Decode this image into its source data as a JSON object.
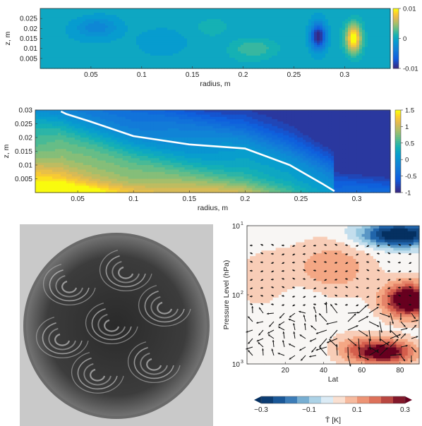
{
  "chart_data": [
    {
      "type": "heatmap",
      "xlabel": "radius, m",
      "ylabel": "z, m",
      "xlim": [
        0,
        0.345
      ],
      "ylim": [
        0,
        0.03
      ],
      "xticks": [
        0.05,
        0.1,
        0.15,
        0.2,
        0.25,
        0.3
      ],
      "xtick_labels": [
        "0.05",
        "0.1",
        "0.15",
        "0.2",
        "0.25",
        "0.3"
      ],
      "yticks": [
        0.005,
        0.01,
        0.015,
        0.02,
        0.025
      ],
      "ytick_labels": [
        "0.005",
        "0.01",
        "0.015",
        "0.02",
        "0.025"
      ],
      "colorbar": {
        "min": -0.01,
        "max": 0.01,
        "ticks": [
          0.01,
          0,
          -0.01
        ],
        "tick_labels": [
          "0.01",
          "0",
          "-0.01"
        ]
      },
      "features": [
        {
          "r": 0.055,
          "z": 0.021,
          "value": -0.003,
          "sr": 0.03,
          "sz": 0.008
        },
        {
          "r": 0.12,
          "z": 0.014,
          "value": -0.0015,
          "sr": 0.04,
          "sz": 0.01
        },
        {
          "r": 0.21,
          "z": 0.01,
          "value": 0.0025,
          "sr": 0.03,
          "sz": 0.007
        },
        {
          "r": 0.17,
          "z": 0.02,
          "value": 0.001,
          "sr": 0.03,
          "sz": 0.008
        },
        {
          "r": 0.275,
          "z": 0.016,
          "value": -0.011,
          "sr": 0.011,
          "sz": 0.009
        },
        {
          "r": 0.31,
          "z": 0.015,
          "value": 0.0105,
          "sr": 0.011,
          "sz": 0.01
        }
      ]
    },
    {
      "type": "heatmap",
      "xlabel": "radius, m",
      "ylabel": "z, m",
      "xlim": [
        0.012,
        0.33
      ],
      "ylim": [
        0,
        0.03
      ],
      "xticks": [
        0.05,
        0.1,
        0.15,
        0.2,
        0.25,
        0.3
      ],
      "xtick_labels": [
        "0.05",
        "0.1",
        "0.15",
        "0.2",
        "0.25",
        "0.3"
      ],
      "yticks": [
        0.005,
        0.01,
        0.015,
        0.02,
        0.025,
        0.03
      ],
      "ytick_labels": [
        "0.005",
        "0.01",
        "0.015",
        "0.02",
        "0.025",
        "0.03"
      ],
      "colorbar": {
        "min": -1,
        "max": 1.5,
        "ticks": [
          1.5,
          1,
          0.5,
          0,
          -0.5,
          -1
        ],
        "tick_labels": [
          "1.5",
          "1",
          "0.5",
          "0",
          "-0.5",
          "-1"
        ]
      },
      "zero_line": {
        "r": [
          0.035,
          0.04,
          0.06,
          0.1,
          0.15,
          0.2,
          0.24,
          0.27,
          0.28
        ],
        "z": [
          0.0295,
          0.0285,
          0.026,
          0.0205,
          0.0175,
          0.016,
          0.01,
          0.003,
          0.0005
        ]
      }
    },
    {
      "type": "heatmap",
      "xlabel": "Lat",
      "ylabel": "Pressure Level (hPa)",
      "xlim": [
        0,
        90
      ],
      "ylim": [
        1000,
        10
      ],
      "yscale": "log",
      "xticks": [
        20,
        40,
        60,
        80
      ],
      "xtick_labels": [
        "20",
        "40",
        "60",
        "80"
      ],
      "yticks": [
        10,
        100,
        1000
      ],
      "ytick_labels": [
        "10",
        "10",
        "10"
      ],
      "ytick_exponents": [
        "1",
        "2",
        "3"
      ],
      "colorbar": {
        "label": "T̄ [K]",
        "min": -0.3,
        "max": 0.3,
        "orientation": "horizontal",
        "ticks": [
          -0.3,
          -0.1,
          0.1,
          0.3
        ],
        "tick_labels": [
          "−0.3",
          "−0.1",
          "0.1",
          "0.3"
        ]
      },
      "features": [
        {
          "lat": 80,
          "p": 13,
          "value": -0.35,
          "sl": 14,
          "sp": 0.25
        },
        {
          "lat": 45,
          "p": 40,
          "value": 0.12,
          "sl": 14,
          "sp": 0.55
        },
        {
          "lat": 10,
          "p": 60,
          "value": 0.06,
          "sl": 12,
          "sp": 0.6
        },
        {
          "lat": 28,
          "p": 120,
          "value": -0.04,
          "sl": 10,
          "sp": 0.4
        },
        {
          "lat": 85,
          "p": 120,
          "value": 0.4,
          "sl": 9,
          "sp": 0.35
        },
        {
          "lat": 72,
          "p": 700,
          "value": 0.35,
          "sl": 11,
          "sp": 0.25
        },
        {
          "lat": 55,
          "p": 600,
          "value": 0.08,
          "sl": 8,
          "sp": 0.3
        }
      ]
    }
  ],
  "photo": {
    "description_icon": "rotating-tank-eddies-photo"
  }
}
